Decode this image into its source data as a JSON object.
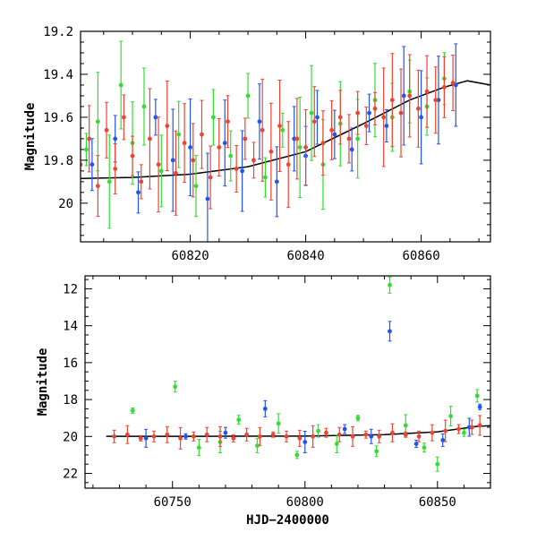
{
  "chart_data": [
    {
      "type": "scatter",
      "title": "",
      "xlabel": "",
      "ylabel": "Magnitude",
      "xlim": [
        60801,
        60872
      ],
      "ylim": [
        20.18,
        19.2
      ],
      "y_inverted": true,
      "xticks": [
        60820,
        60840,
        60860
      ],
      "yticks": [
        19.2,
        19.4,
        19.6,
        19.8,
        20
      ],
      "ytick_labels": [
        "19.2",
        "19.4",
        "19.6",
        "19.8",
        "20"
      ],
      "grid": false,
      "series": [
        {
          "color": "#33dd33",
          "points": [
            [
              60802,
              19.75
            ],
            [
              60804,
              19.62
            ],
            [
              60806,
              19.9
            ],
            [
              60808,
              19.45
            ],
            [
              60810,
              19.72
            ],
            [
              60812,
              19.55
            ],
            [
              60815,
              19.85
            ],
            [
              60818,
              19.68
            ],
            [
              60821,
              19.92
            ],
            [
              60824,
              19.6
            ],
            [
              60827,
              19.78
            ],
            [
              60830,
              19.5
            ],
            [
              60833,
              19.88
            ],
            [
              60836,
              19.66
            ],
            [
              60839,
              19.74
            ],
            [
              60841,
              19.58
            ],
            [
              60843,
              19.82
            ],
            [
              60846,
              19.63
            ],
            [
              60849,
              19.7
            ],
            [
              60852,
              19.52
            ],
            [
              60855,
              19.6
            ],
            [
              60858,
              19.48
            ],
            [
              60861,
              19.55
            ],
            [
              60864,
              19.42
            ]
          ]
        },
        {
          "color": "#2255ee",
          "points": [
            [
              60803,
              19.82
            ],
            [
              60807,
              19.7
            ],
            [
              60811,
              19.95
            ],
            [
              60814,
              19.6
            ],
            [
              60817,
              19.8
            ],
            [
              60820,
              19.74
            ],
            [
              60823,
              19.98
            ],
            [
              60826,
              19.72
            ],
            [
              60829,
              19.85
            ],
            [
              60832,
              19.62
            ],
            [
              60835,
              19.9
            ],
            [
              60838,
              19.7
            ],
            [
              60840,
              19.78
            ],
            [
              60842,
              19.6
            ],
            [
              60845,
              19.68
            ],
            [
              60848,
              19.75
            ],
            [
              60851,
              19.58
            ],
            [
              60854,
              19.64
            ],
            [
              60857,
              19.5
            ],
            [
              60860,
              19.6
            ],
            [
              60863,
              19.52
            ],
            [
              60866,
              19.45
            ]
          ]
        },
        {
          "color": "#ee4433",
          "points": [
            [
              60801,
              19.82
            ],
            [
              60802.5,
              19.7
            ],
            [
              60804,
              19.92
            ],
            [
              60805.5,
              19.66
            ],
            [
              60807,
              19.84
            ],
            [
              60808.5,
              19.6
            ],
            [
              60810,
              19.78
            ],
            [
              60811.5,
              19.9
            ],
            [
              60813,
              19.7
            ],
            [
              60814.5,
              19.82
            ],
            [
              60816,
              19.64
            ],
            [
              60817.5,
              19.86
            ],
            [
              60819,
              19.72
            ],
            [
              60820.5,
              19.8
            ],
            [
              60822,
              19.68
            ],
            [
              60823.5,
              19.88
            ],
            [
              60825,
              19.74
            ],
            [
              60826.5,
              19.62
            ],
            [
              60828,
              19.84
            ],
            [
              60829.5,
              19.7
            ],
            [
              60831,
              19.8
            ],
            [
              60832.5,
              19.66
            ],
            [
              60834,
              19.76
            ],
            [
              60835.5,
              19.64
            ],
            [
              60837,
              19.82
            ],
            [
              60838.5,
              19.7
            ],
            [
              60840,
              19.74
            ],
            [
              60841.5,
              19.62
            ],
            [
              60843,
              19.72
            ],
            [
              60844.5,
              19.66
            ],
            [
              60846,
              19.6
            ],
            [
              60847.5,
              19.7
            ],
            [
              60849,
              19.58
            ],
            [
              60850.5,
              19.64
            ],
            [
              60852,
              19.56
            ],
            [
              60853.5,
              19.6
            ],
            [
              60855,
              19.52
            ],
            [
              60856.5,
              19.58
            ],
            [
              60858,
              19.5
            ],
            [
              60859.5,
              19.56
            ],
            [
              60861,
              19.48
            ],
            [
              60862.5,
              19.52
            ],
            [
              60864,
              19.46
            ],
            [
              60865.5,
              19.44
            ]
          ]
        }
      ],
      "model_curve": [
        [
          60801,
          19.885
        ],
        [
          60810,
          19.88
        ],
        [
          60820,
          19.865
        ],
        [
          60830,
          19.83
        ],
        [
          60840,
          19.76
        ],
        [
          60850,
          19.63
        ],
        [
          60858,
          19.52
        ],
        [
          60864,
          19.46
        ],
        [
          60868,
          19.43
        ],
        [
          60872,
          19.45
        ]
      ]
    },
    {
      "type": "scatter",
      "title": "",
      "xlabel": "HJD−2400000",
      "ylabel": "Magnitude",
      "xlim": [
        60717,
        60870
      ],
      "ylim": [
        22.8,
        11.3
      ],
      "y_inverted": true,
      "xticks": [
        60750,
        60800,
        60850
      ],
      "yticks": [
        12,
        14,
        16,
        18,
        20,
        22
      ],
      "ytick_labels": [
        "12",
        "14",
        "16",
        "18",
        "20",
        "22"
      ],
      "grid": false,
      "series": [
        {
          "color": "#33dd33",
          "points": [
            [
              60735,
              18.6
            ],
            [
              60751,
              17.3
            ],
            [
              60760,
              20.6
            ],
            [
              60768,
              20.3
            ],
            [
              60775,
              19.1
            ],
            [
              60782,
              20.5
            ],
            [
              60790,
              19.3
            ],
            [
              60797,
              21.0
            ],
            [
              60805,
              19.7
            ],
            [
              60812,
              20.4
            ],
            [
              60820,
              19.0
            ],
            [
              60827,
              20.8
            ],
            [
              60832,
              11.8
            ],
            [
              60838,
              19.4
            ],
            [
              60845,
              20.6
            ],
            [
              60850,
              21.5
            ],
            [
              60855,
              18.9
            ],
            [
              60860,
              19.8
            ],
            [
              60865,
              17.8
            ]
          ]
        },
        {
          "color": "#2255ee",
          "points": [
            [
              60740,
              20.1
            ],
            [
              60755,
              20.0
            ],
            [
              60770,
              19.8
            ],
            [
              60785,
              18.5
            ],
            [
              60800,
              20.3
            ],
            [
              60815,
              19.6
            ],
            [
              60825,
              20.0
            ],
            [
              60832,
              14.3
            ],
            [
              60842,
              20.4
            ],
            [
              60852,
              20.2
            ],
            [
              60862,
              19.5
            ],
            [
              60866,
              18.4
            ]
          ]
        },
        {
          "color": "#ee4433",
          "points": [
            [
              60728,
              20.0
            ],
            [
              60733,
              19.9
            ],
            [
              60738,
              20.1
            ],
            [
              60743,
              20.0
            ],
            [
              60748,
              19.9
            ],
            [
              60753,
              20.1
            ],
            [
              60758,
              20.0
            ],
            [
              60763,
              19.9
            ],
            [
              60768,
              20.0
            ],
            [
              60773,
              20.1
            ],
            [
              60778,
              19.9
            ],
            [
              60783,
              20.0
            ],
            [
              60788,
              19.9
            ],
            [
              60793,
              20.0
            ],
            [
              60798,
              20.1
            ],
            [
              60803,
              20.0
            ],
            [
              60808,
              19.8
            ],
            [
              60813,
              19.9
            ],
            [
              60818,
              20.0
            ],
            [
              60823,
              19.9
            ],
            [
              60828,
              20.0
            ],
            [
              60833,
              19.8
            ],
            [
              60838,
              19.9
            ],
            [
              60843,
              20.0
            ],
            [
              60848,
              19.8
            ],
            [
              60853,
              19.7
            ],
            [
              60858,
              19.6
            ],
            [
              60863,
              19.5
            ],
            [
              60866,
              19.4
            ]
          ]
        }
      ],
      "model_curve": [
        [
          60725,
          19.99
        ],
        [
          60760,
          19.99
        ],
        [
          60800,
          19.98
        ],
        [
          60830,
          19.9
        ],
        [
          60850,
          19.75
        ],
        [
          60865,
          19.45
        ],
        [
          60870,
          19.42
        ]
      ]
    }
  ]
}
